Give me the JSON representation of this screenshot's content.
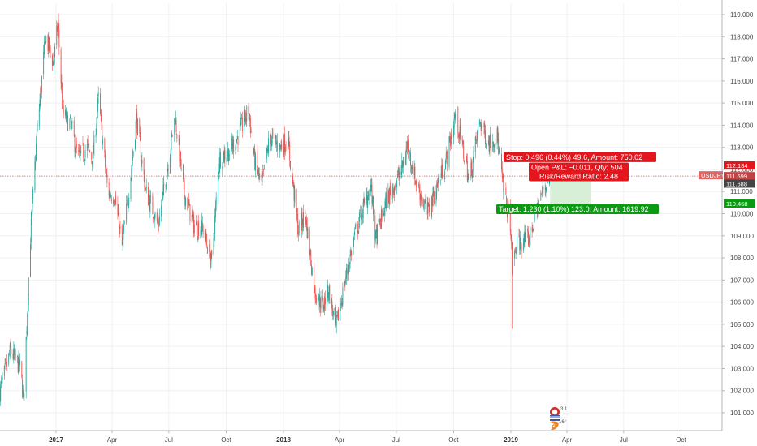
{
  "chart_data": {
    "type": "candlestick",
    "symbol": "USDJPY",
    "colors": {
      "up": "#26a69a",
      "down": "#ef5350",
      "stop_fill": "#f9d2d2",
      "target_fill": "#d7eed7",
      "stop_label": "#e4161d",
      "target_label": "#0b9b12",
      "price_line": "#e25555",
      "tag_symbol": "#e06666",
      "tag_price": "#c04444",
      "tag_stop": "#e4161d",
      "tag_entry": "#444444",
      "tag_target": "#0b9b12",
      "grid": "#eef0f3",
      "axis_line": "#b2b5be",
      "axis_text": "#4a4a4a"
    },
    "y_axis": {
      "range": [
        100.3,
        119.3
      ],
      "ticks": [
        "119.000",
        "118.000",
        "117.000",
        "116.000",
        "115.000",
        "114.000",
        "113.000",
        "112.000",
        "111.000",
        "110.000",
        "109.000",
        "108.000",
        "107.000",
        "106.000",
        "105.000",
        "104.000",
        "103.000",
        "102.000",
        "101.000"
      ]
    },
    "x_axis": {
      "range": [
        "2016-10-01",
        "2019-11-01"
      ],
      "ticks": [
        {
          "label": "2017",
          "date": "2017-01-01",
          "bold": true
        },
        {
          "label": "Apr",
          "date": "2017-04-01",
          "bold": false
        },
        {
          "label": "Jul",
          "date": "2017-07-01",
          "bold": false
        },
        {
          "label": "Oct",
          "date": "2017-10-01",
          "bold": false
        },
        {
          "label": "2018",
          "date": "2018-01-01",
          "bold": true
        },
        {
          "label": "Apr",
          "date": "2018-04-01",
          "bold": false
        },
        {
          "label": "Jul",
          "date": "2018-07-01",
          "bold": false
        },
        {
          "label": "Oct",
          "date": "2018-10-01",
          "bold": false
        },
        {
          "label": "2019",
          "date": "2019-01-01",
          "bold": true
        },
        {
          "label": "Apr",
          "date": "2019-04-01",
          "bold": false
        },
        {
          "label": "Jul",
          "date": "2019-07-01",
          "bold": false
        },
        {
          "label": "Oct",
          "date": "2019-10-01",
          "bold": false
        }
      ]
    },
    "price_path": [
      [
        "2016-10-03",
        102.0
      ],
      [
        "2016-10-20",
        103.8
      ],
      [
        "2016-11-05",
        103.0
      ],
      [
        "2016-11-10",
        101.5
      ],
      [
        "2016-11-20",
        108.5
      ],
      [
        "2016-12-01",
        113.5
      ],
      [
        "2016-12-15",
        118.0
      ],
      [
        "2016-12-28",
        116.8
      ],
      [
        "2017-01-04",
        118.6
      ],
      [
        "2017-01-12",
        114.5
      ],
      [
        "2017-01-25",
        114.0
      ],
      [
        "2017-02-05",
        112.5
      ],
      [
        "2017-02-20",
        113.0
      ],
      [
        "2017-03-01",
        112.5
      ],
      [
        "2017-03-10",
        115.2
      ],
      [
        "2017-03-25",
        111.0
      ],
      [
        "2017-04-05",
        110.8
      ],
      [
        "2017-04-17",
        108.5
      ],
      [
        "2017-05-01",
        111.8
      ],
      [
        "2017-05-10",
        114.3
      ],
      [
        "2017-05-25",
        111.0
      ],
      [
        "2017-06-14",
        109.5
      ],
      [
        "2017-07-01",
        112.5
      ],
      [
        "2017-07-11",
        114.4
      ],
      [
        "2017-07-25",
        111.0
      ],
      [
        "2017-08-10",
        109.5
      ],
      [
        "2017-08-25",
        109.3
      ],
      [
        "2017-09-08",
        107.8
      ],
      [
        "2017-09-20",
        112.5
      ],
      [
        "2017-10-05",
        112.8
      ],
      [
        "2017-10-20",
        113.5
      ],
      [
        "2017-11-06",
        114.7
      ],
      [
        "2017-11-15",
        112.5
      ],
      [
        "2017-11-27",
        111.2
      ],
      [
        "2017-12-10",
        113.5
      ],
      [
        "2017-12-25",
        113.0
      ],
      [
        "2018-01-08",
        113.3
      ],
      [
        "2018-01-25",
        109.2
      ],
      [
        "2018-02-05",
        110.0
      ],
      [
        "2018-02-20",
        106.5
      ],
      [
        "2018-03-05",
        105.8
      ],
      [
        "2018-03-14",
        106.6
      ],
      [
        "2018-03-26",
        104.8
      ],
      [
        "2018-04-10",
        107.0
      ],
      [
        "2018-04-25",
        109.0
      ],
      [
        "2018-05-21",
        111.3
      ],
      [
        "2018-05-29",
        108.8
      ],
      [
        "2018-06-15",
        110.6
      ],
      [
        "2018-07-10",
        112.0
      ],
      [
        "2018-07-19",
        113.1
      ],
      [
        "2018-08-01",
        111.5
      ],
      [
        "2018-08-20",
        110.0
      ],
      [
        "2018-09-01",
        111.0
      ],
      [
        "2018-09-20",
        112.5
      ],
      [
        "2018-10-04",
        114.5
      ],
      [
        "2018-10-26",
        111.5
      ],
      [
        "2018-11-12",
        114.2
      ],
      [
        "2018-11-25",
        113.2
      ],
      [
        "2018-12-10",
        113.5
      ],
      [
        "2018-12-20",
        111.0
      ],
      [
        "2018-12-31",
        109.6
      ],
      [
        "2019-01-03",
        107.5
      ],
      [
        "2019-01-10",
        108.6
      ],
      [
        "2019-01-31",
        108.9
      ],
      [
        "2019-02-15",
        110.6
      ],
      [
        "2019-02-28",
        111.4
      ],
      [
        "2019-03-05",
        111.7
      ]
    ],
    "flash_crash": {
      "date": "2019-01-03",
      "low": 104.8
    },
    "current_price": 111.699,
    "position": {
      "start": "2019-03-05",
      "end": "2019-05-10",
      "stop": 112.184,
      "entry": 111.688,
      "target": 110.458
    },
    "labels": {
      "stop": "Stop: 0.496 (0.44%) 49.6, Amount: 750.02",
      "pnl": "Open P&L: −0.011, Qty: 504",
      "rr": "Risk/Reward Ratio: 2.48",
      "target": "Target: 1.230 (1.10%) 123.0, Amount: 1619.92"
    },
    "axis_tags": {
      "symbol": "USDJPY",
      "stop": "112.184",
      "current": "111.699",
      "entry": "111.688",
      "target": "110.458"
    },
    "logo": {
      "text": "3 1",
      "subtext": "16°",
      "icon": "owl-flag-logo-icon"
    }
  }
}
